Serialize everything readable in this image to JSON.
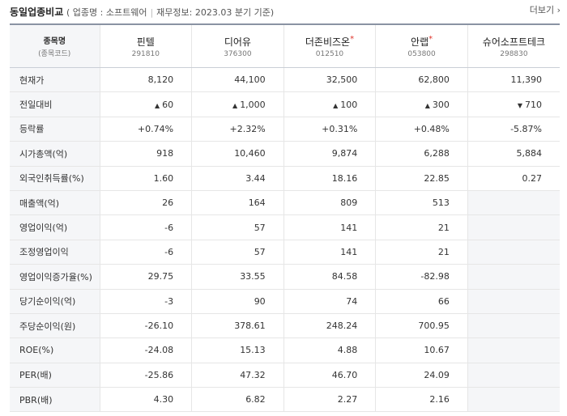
{
  "header": {
    "title": "동일업종비교",
    "industry": "( 업종명 : 소프트웨어",
    "finance": "재무정보: 2023.03 분기 기준)",
    "more": "더보기"
  },
  "label_header": {
    "main": "종목명",
    "sub": "(종목코드)"
  },
  "companies": [
    {
      "name": "핀텔",
      "code": "291810",
      "star": ""
    },
    {
      "name": "디어유",
      "code": "376300",
      "star": ""
    },
    {
      "name": "더존비즈온",
      "code": "012510",
      "star": "*"
    },
    {
      "name": "안랩",
      "code": "053800",
      "star": "*"
    },
    {
      "name": "슈어소프트테크",
      "code": "298830",
      "star": ""
    }
  ],
  "colors": {
    "up": "#e0372e",
    "down": "#1e6ad6"
  },
  "rows": [
    {
      "label": "현재가",
      "values": [
        "8,120",
        "44,100",
        "32,500",
        "62,800",
        "11,390"
      ]
    },
    {
      "label": "전일대비",
      "values": [
        "60",
        "1,000",
        "100",
        "300",
        "710"
      ],
      "dirs": [
        "up",
        "up",
        "up",
        "up",
        "down"
      ]
    },
    {
      "label": "등락률",
      "values": [
        "+0.74%",
        "+2.32%",
        "+0.31%",
        "+0.48%",
        "-5.87%"
      ],
      "dirs": [
        "up",
        "up",
        "up",
        "up",
        "down"
      ]
    },
    {
      "label": "시가총액(억)",
      "values": [
        "918",
        "10,460",
        "9,874",
        "6,288",
        "5,884"
      ]
    },
    {
      "label": "외국인취득률(%)",
      "values": [
        "1.60",
        "3.44",
        "18.16",
        "22.85",
        "0.27"
      ]
    },
    {
      "label": "매출액(억)",
      "values": [
        "26",
        "164",
        "809",
        "513",
        ""
      ]
    },
    {
      "label": "영업이익(억)",
      "values": [
        "-6",
        "57",
        "141",
        "21",
        ""
      ]
    },
    {
      "label": "조정영업이익",
      "values": [
        "-6",
        "57",
        "141",
        "21",
        ""
      ]
    },
    {
      "label": "영업이익증가율(%)",
      "values": [
        "29.75",
        "33.55",
        "84.58",
        "-82.98",
        ""
      ]
    },
    {
      "label": "당기순이익(억)",
      "values": [
        "-3",
        "90",
        "74",
        "66",
        ""
      ]
    },
    {
      "label": "주당순이익(원)",
      "values": [
        "-26.10",
        "378.61",
        "248.24",
        "700.95",
        ""
      ]
    },
    {
      "label": "ROE(%)",
      "values": [
        "-24.08",
        "15.13",
        "4.88",
        "10.67",
        ""
      ]
    },
    {
      "label": "PER(배)",
      "values": [
        "-25.86",
        "47.32",
        "46.70",
        "24.09",
        ""
      ]
    },
    {
      "label": "PBR(배)",
      "values": [
        "4.30",
        "6.82",
        "2.27",
        "2.16",
        ""
      ]
    }
  ]
}
